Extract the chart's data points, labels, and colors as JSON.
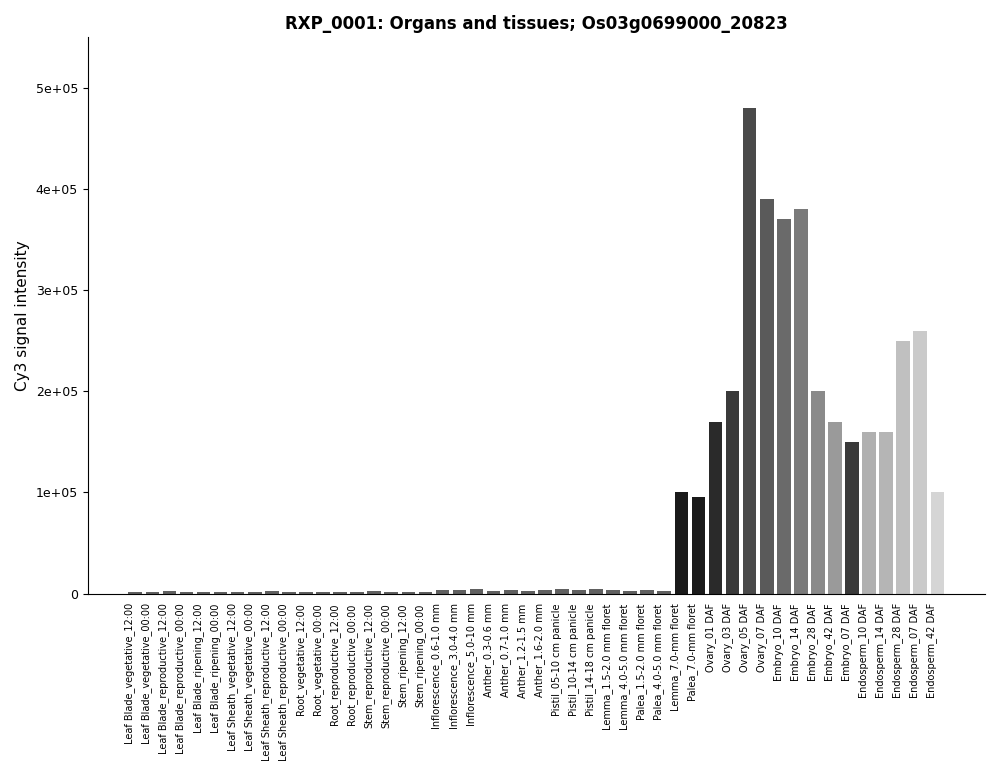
{
  "title": "RXP_0001: Organs and tissues; Os03g0699000_20823",
  "ylabel": "Cy3 signal intensity",
  "categories": [
    "Leaf Blade_vegetative_12:00",
    "Leaf Blade_vegetative_00:00",
    "Leaf Blade_reproductive_12:00",
    "Leaf Blade_reproductive_00:00",
    "Leaf Blade_ripening_12:00",
    "Leaf Blade_ripening_00:00",
    "Leaf Sheath_vegetative_12:00",
    "Leaf Sheath_vegetative_00:00",
    "Leaf Sheath_reproductive_12:00",
    "Leaf Sheath_reproductive_00:00",
    "Root_vegetative_12:00",
    "Root_vegetative_00:00",
    "Root_reproductive_12:00",
    "Root_reproductive_00:00",
    "Stem_reproductive_12:00",
    "Stem_reproductive_00:00",
    "Stem_ripening_12:00",
    "Stem_ripening_00:00",
    "Inflorescence_0.6-1.0 mm",
    "Inflorescence_3.0-4.0 mm",
    "Inflorescence_5.0-10 mm",
    "Anther_0.3-0.6 mm",
    "Anther_0.7-1.0 mm",
    "Anther_1.2-1.5 mm",
    "Anther_1.6-2.0 mm",
    "Pistil_05-10 cm panicle",
    "Pistil_10-14 cm panicle",
    "Pistil_14-18 cm panicle",
    "Lemma_1.5-2.0 mm floret",
    "Lemma_4.0-5.0 mm floret",
    "Palea_1.5-2.0 mm floret",
    "Palea_4.0-5.0 mm floret",
    "Lemma_7.0-mm floret",
    "Palea_7.0-mm floret",
    "Ovary_01 DAF",
    "Ovary_03 DAF",
    "Ovary_05 DAF",
    "Ovary_07 DAF",
    "Embryo_10 DAF",
    "Embryo_14 DAF",
    "Embryo_28 DAF",
    "Embryo_42 DAF",
    "Embryo_07 DAF",
    "Endosperm_10 DAF",
    "Endosperm_14 DAF",
    "Endosperm_28 DAF",
    "Endosperm_07 DAF",
    "Endosperm_42 DAF"
  ],
  "values": [
    2000,
    1500,
    2500,
    1800,
    2000,
    1600,
    1800,
    1400,
    2200,
    1700,
    1900,
    1500,
    2000,
    1600,
    2100,
    1700,
    1900,
    1500,
    3000,
    3500,
    4000,
    2500,
    3000,
    2800,
    3500,
    4000,
    3500,
    4500,
    3000,
    2500,
    3000,
    2500,
    100000,
    95000,
    170000,
    200000,
    480000,
    390000,
    370000,
    380000,
    200000,
    170000,
    150000,
    160000,
    160000,
    250000,
    260000,
    100000
  ],
  "colors": [
    "#555555",
    "#555555",
    "#555555",
    "#555555",
    "#555555",
    "#555555",
    "#555555",
    "#555555",
    "#555555",
    "#555555",
    "#555555",
    "#555555",
    "#555555",
    "#555555",
    "#555555",
    "#555555",
    "#555555",
    "#555555",
    "#555555",
    "#555555",
    "#555555",
    "#555555",
    "#555555",
    "#555555",
    "#555555",
    "#555555",
    "#555555",
    "#555555",
    "#555555",
    "#555555",
    "#555555",
    "#555555",
    "#111111",
    "#111111",
    "#222222",
    "#333333",
    "#444444",
    "#555555",
    "#666666",
    "#777777",
    "#888888",
    "#999999",
    "#222222",
    "#aaaaaa",
    "#aaaaaa",
    "#bbbbbb",
    "#cccccc",
    "#dddddd"
  ],
  "ylim": [
    0,
    550000
  ],
  "yticks": [
    0,
    100000,
    200000,
    300000,
    400000,
    500000
  ],
  "ytick_labels": [
    "0",
    "1e+05",
    "2e+05",
    "3e+05",
    "4e+05",
    "5e+05"
  ]
}
